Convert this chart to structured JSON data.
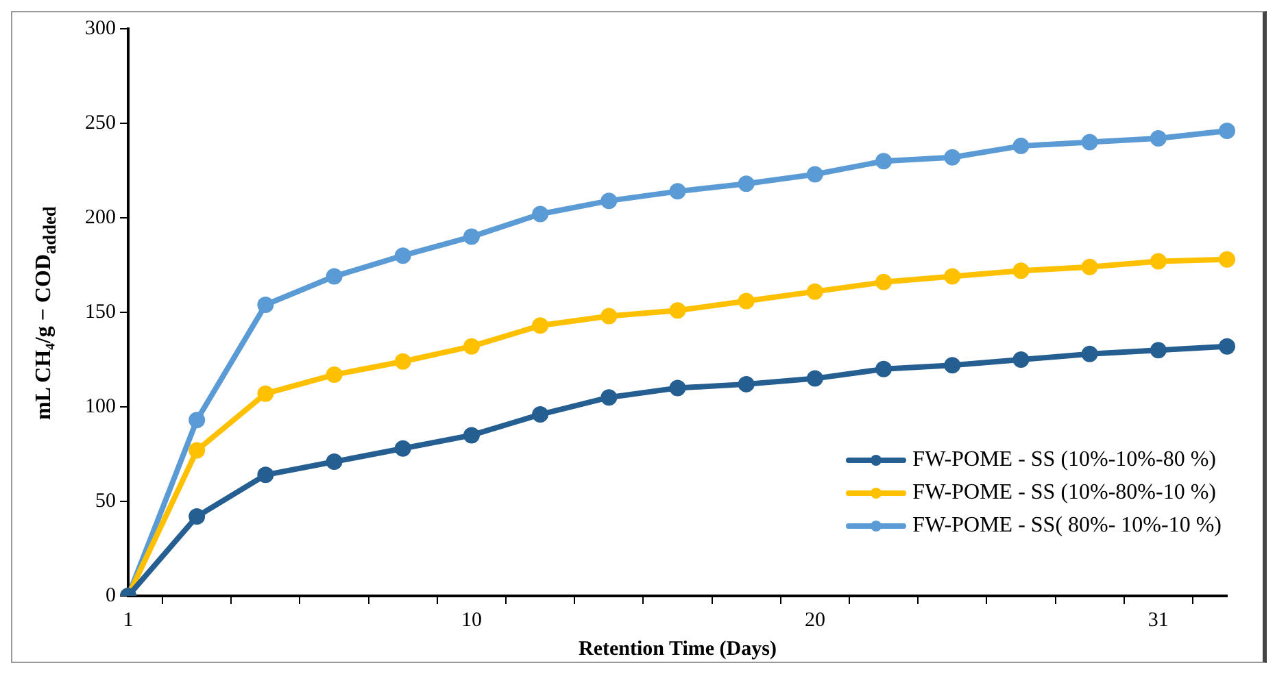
{
  "chart_data": {
    "type": "line",
    "xlabel": "Retention Time (Days)",
    "ylabel": "mL CH₄/g − COD$_{added}$",
    "categories": [
      "1",
      null,
      null,
      null,
      null,
      "10",
      null,
      null,
      null,
      null,
      "20",
      null,
      null,
      null,
      null,
      "31",
      null
    ],
    "series": [
      {
        "name": "FW-POME - SS (10%-10%-80 %)",
        "color": "#255e91",
        "values": [
          0,
          42,
          64,
          71,
          78,
          85,
          96,
          105,
          110,
          112,
          115,
          120,
          122,
          125,
          128,
          130,
          132
        ]
      },
      {
        "name": "FW-POME - SS (10%-80%-10 %)",
        "color": "#ffc000",
        "values": [
          0,
          77,
          107,
          117,
          124,
          132,
          143,
          148,
          151,
          156,
          161,
          166,
          169,
          172,
          174,
          177,
          178
        ]
      },
      {
        "name": "FW-POME - SS( 80%- 10%-10 %)",
        "color": "#5b9bd5",
        "values": [
          0,
          93,
          154,
          169,
          180,
          190,
          202,
          209,
          214,
          218,
          223,
          230,
          232,
          238,
          240,
          242,
          246
        ]
      }
    ],
    "ylim": [
      0,
      300
    ],
    "yticks": [
      0,
      50,
      100,
      150,
      200,
      250,
      300
    ],
    "grid": false,
    "legend": "bottom right",
    "marker": "circle",
    "line_style": "solid"
  }
}
